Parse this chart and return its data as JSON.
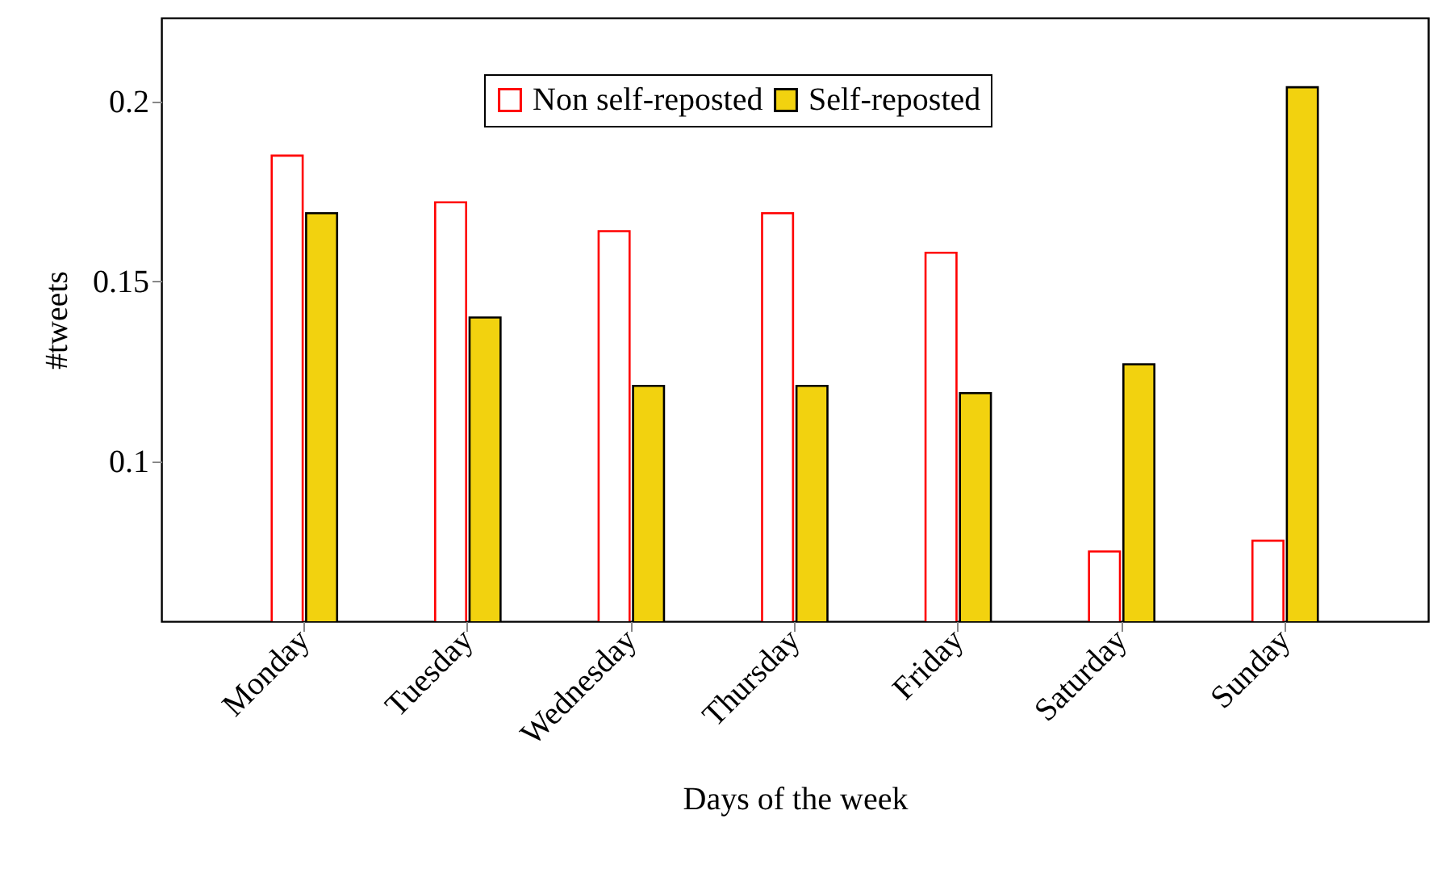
{
  "chart_data": {
    "type": "bar",
    "xlabel": "Days of the week",
    "ylabel": "#tweets",
    "categories": [
      "Monday",
      "Tuesday",
      "Wednesday",
      "Thursday",
      "Friday",
      "Saturday",
      "Sunday"
    ],
    "series": [
      {
        "name": "Non self-reposted",
        "color": "#ff0000",
        "values": [
          0.185,
          0.172,
          0.164,
          0.169,
          0.158,
          0.075,
          0.078
        ]
      },
      {
        "name": "Self-reposted",
        "color": "#f2d20f",
        "values": [
          0.169,
          0.14,
          0.121,
          0.121,
          0.119,
          0.127,
          0.204
        ]
      }
    ],
    "ylim": [
      0.0556,
      0.2233
    ],
    "yticks": [
      0.1,
      0.15,
      0.2
    ],
    "grid": false,
    "legend": "top"
  }
}
